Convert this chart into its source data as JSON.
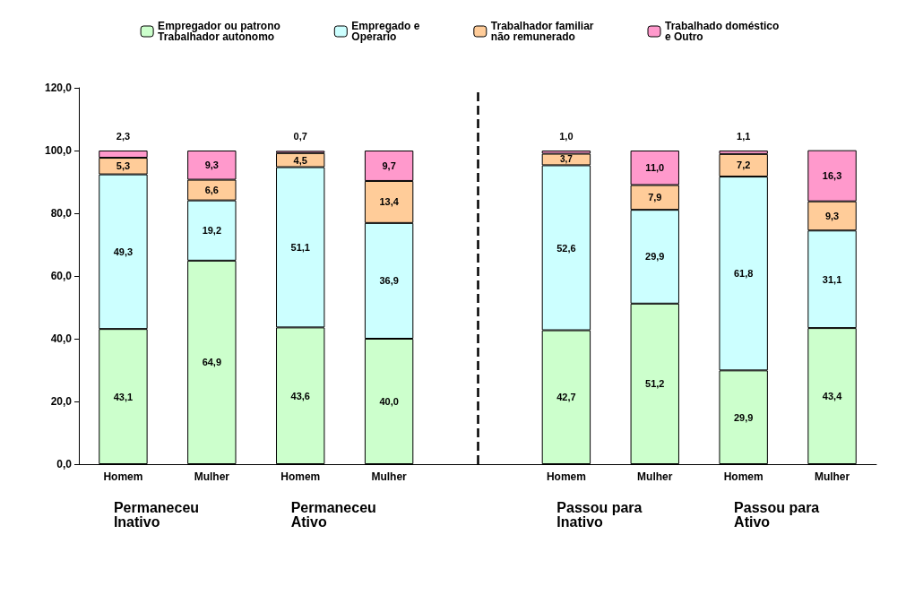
{
  "chart_data": {
    "type": "bar",
    "stacked": true,
    "categories": [
      "Homem",
      "Mulher",
      "Homem",
      "Mulher",
      null,
      "Homem",
      "Mulher",
      "Homem",
      "Mulher"
    ],
    "series": [
      {
        "name": "Empregador ou patrono\nTrabalhador autonomo",
        "color": "#ccffcc",
        "values": [
          43.1,
          64.9,
          43.6,
          40.0,
          null,
          42.7,
          51.2,
          29.9,
          43.4
        ],
        "value_labels": [
          "43,1",
          "64,9",
          "43,6",
          "40,0",
          null,
          "42,7",
          "51,2",
          "29,9",
          "43,4"
        ]
      },
      {
        "name": "Empregado e\nOperario",
        "color": "#ccffff",
        "values": [
          49.3,
          19.2,
          51.1,
          36.9,
          null,
          52.6,
          29.9,
          61.8,
          31.1
        ],
        "value_labels": [
          "49,3",
          "19,2",
          "51,1",
          "36,9",
          null,
          "52,6",
          "29,9",
          "61,8",
          "31,1"
        ]
      },
      {
        "name": "Trabalhador familiar\nnão remunerado",
        "color": "#ffcc99",
        "values": [
          5.3,
          6.6,
          4.5,
          13.4,
          null,
          3.7,
          7.9,
          7.2,
          9.3
        ],
        "value_labels": [
          "5,3",
          "6,6",
          "4,5",
          "13,4",
          null,
          "3,7",
          "7,9",
          "7,2",
          "9,3"
        ]
      },
      {
        "name": "Trabalhado doméstico\ne Outro",
        "color": "#ff99cc",
        "values": [
          2.3,
          9.3,
          0.7,
          9.7,
          null,
          1.0,
          11.0,
          1.1,
          16.3
        ],
        "value_labels": [
          "2,3",
          "9,3",
          "0,7",
          "9,7",
          null,
          "1,0",
          "11,0",
          "1,1",
          "16,3"
        ]
      }
    ],
    "ylim": [
      0,
      120
    ],
    "yticks": [
      {
        "value": 0,
        "label": "0,0"
      },
      {
        "value": 20,
        "label": "20,0"
      },
      {
        "value": 40,
        "label": "40,0"
      },
      {
        "value": 60,
        "label": "60,0"
      },
      {
        "value": 80,
        "label": "80,0"
      },
      {
        "value": 100,
        "label": "100,0"
      },
      {
        "value": 120,
        "label": "120,0"
      }
    ],
    "ref_lines": [
      {
        "axis": "x",
        "value": null,
        "line_style": "dashed",
        "color": "#000000"
      }
    ],
    "annotations": [
      "Permaneceu\nInativo",
      "Permaneceu\nAtivo",
      "Passou para\nInativo",
      "Passou para\nAtivo"
    ],
    "legend": "top"
  }
}
